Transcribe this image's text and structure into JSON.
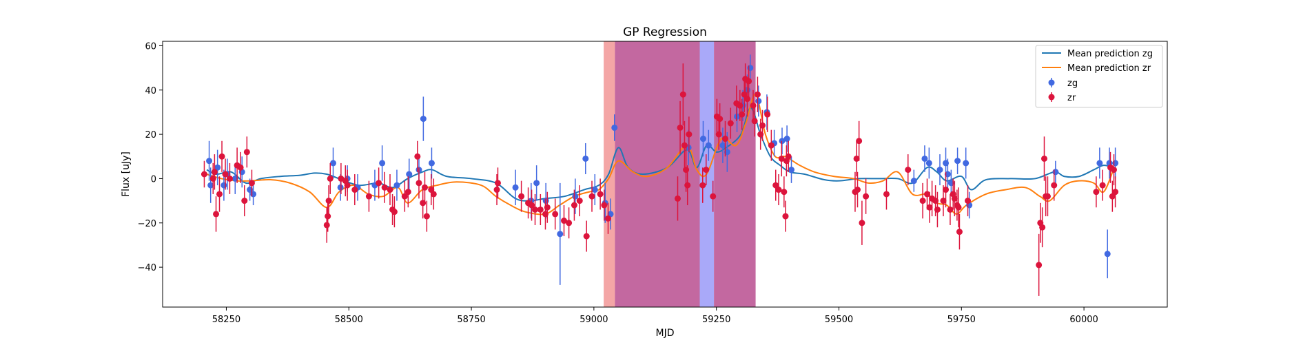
{
  "chart_data": {
    "type": "scatter",
    "title": "GP Regression",
    "xlabel": "MJD",
    "ylabel": "Flux [uJy]",
    "xlim": [
      58120,
      60170
    ],
    "ylim": [
      -58,
      62
    ],
    "xticks": [
      58250,
      58500,
      58750,
      59000,
      59250,
      59500,
      59750,
      60000
    ],
    "yticks": [
      -40,
      -20,
      0,
      20,
      40,
      60
    ],
    "grid": false,
    "legend_position": "top-right",
    "shaded_regions": [
      {
        "x0": 59020,
        "x1": 59043,
        "color": "#f08080",
        "opacity": 0.7
      },
      {
        "x0": 59043,
        "x1": 59216,
        "color": "#c0609b",
        "opacity": 0.95
      },
      {
        "x0": 59216,
        "x1": 59245,
        "color": "#a0a0f8",
        "opacity": 0.9
      },
      {
        "x0": 59245,
        "x1": 59330,
        "color": "#c0609b",
        "opacity": 0.95
      }
    ],
    "series": [
      {
        "name": "Mean prediction zg",
        "kind": "line",
        "color": "#1f77b4",
        "x": [
          58210,
          58230,
          58260,
          58290,
          58320,
          58360,
          58400,
          58430,
          58455,
          58480,
          58520,
          58560,
          58590,
          58620,
          58650,
          58670,
          58700,
          58750,
          58800,
          58840,
          58870,
          58900,
          58940,
          58980,
          59010,
          59030,
          59050,
          59070,
          59100,
          59150,
          59190,
          59210,
          59230,
          59250,
          59270,
          59300,
          59320,
          59340,
          59360,
          59380,
          59400,
          59430,
          59470,
          59500,
          59540,
          59580,
          59620,
          59650,
          59680,
          59700,
          59720,
          59750,
          59770,
          59800,
          59850,
          59900,
          59940,
          59960,
          59990,
          60020,
          60040,
          60060
        ],
        "y": [
          4,
          2,
          3,
          -2,
          0,
          1,
          1.5,
          2.5,
          2,
          0,
          -3,
          -2,
          -4,
          0,
          3,
          4,
          1,
          0,
          -2,
          -9,
          -10,
          -9,
          -8,
          -5,
          -3,
          2,
          14,
          5,
          2,
          5,
          13,
          5,
          15,
          12,
          14,
          20,
          32,
          20,
          10,
          6,
          3,
          2,
          -0.5,
          -1,
          0,
          0,
          0,
          -2,
          5,
          3,
          -1,
          1,
          -5,
          -0.5,
          0,
          0,
          3,
          1,
          1,
          4,
          6,
          5
        ]
      },
      {
        "name": "Mean prediction zr",
        "kind": "line",
        "color": "#ff7f0e",
        "x": [
          58210,
          58240,
          58270,
          58300,
          58340,
          58380,
          58420,
          58455,
          58480,
          58510,
          58540,
          58570,
          58600,
          58620,
          58650,
          58680,
          58720,
          58770,
          58800,
          58830,
          58860,
          58900,
          58930,
          58960,
          58990,
          59010,
          59030,
          59050,
          59080,
          59110,
          59150,
          59190,
          59210,
          59230,
          59260,
          59290,
          59310,
          59330,
          59350,
          59370,
          59390,
          59420,
          59450,
          59490,
          59530,
          59560,
          59590,
          59620,
          59650,
          59680,
          59700,
          59720,
          59740,
          59760,
          59800,
          59840,
          59880,
          59910,
          59930,
          59960,
          59990,
          60020,
          60040,
          60060
        ],
        "y": [
          2,
          0,
          -1,
          -1,
          -0.5,
          -2,
          -6,
          -13,
          -6,
          -3,
          -7,
          -8,
          -4,
          -11,
          -5,
          -3,
          -1.5,
          -3,
          -8,
          -12,
          -15,
          -16,
          -12,
          -8,
          -6,
          -5,
          0,
          8,
          3,
          1,
          5,
          15,
          4,
          2,
          18,
          15,
          25,
          38,
          20,
          10,
          10,
          6,
          3,
          1,
          0,
          -2,
          -1,
          3,
          -7,
          -7,
          -11,
          -12,
          -16,
          -12,
          -7,
          -5,
          -4,
          -8,
          -10,
          -3,
          -1,
          -2,
          -6,
          4
        ]
      },
      {
        "name": "zg",
        "kind": "errorbar",
        "color": "#4169e1",
        "x": [
          58215,
          58218,
          58232,
          58245,
          58252,
          58268,
          58282,
          58298,
          58305,
          58468,
          58483,
          58497,
          58518,
          58553,
          58568,
          58598,
          58623,
          58643,
          58652,
          58669,
          58840,
          58872,
          58883,
          58902,
          58931,
          58962,
          58983,
          59002,
          59023,
          59034,
          59042,
          59193,
          59223,
          59234,
          59263,
          59272,
          59292,
          59304,
          59313,
          59319,
          59336,
          59353,
          59368,
          59384,
          59394,
          59403,
          59653,
          59675,
          59684,
          59706,
          59718,
          59722,
          59729,
          59742,
          59759,
          59766,
          59942,
          60032,
          60048,
          60052,
          60064
        ],
        "y": [
          8,
          -3,
          5,
          -3,
          2,
          0,
          3,
          -5,
          -7,
          7,
          -4,
          0,
          -4,
          -3,
          7,
          -3,
          2,
          4,
          27,
          7,
          -4,
          -10,
          -2,
          -10,
          -25,
          -8,
          9,
          -5,
          -11,
          -16,
          23,
          14,
          18,
          15,
          15,
          12,
          28,
          33,
          40,
          50,
          35,
          30,
          16,
          17,
          18,
          4,
          -1,
          9,
          7,
          4,
          7,
          2,
          -2,
          8,
          7,
          -12,
          3,
          7,
          -34,
          7,
          7
        ],
        "err": [
          9,
          8,
          8,
          7,
          7,
          7,
          7,
          5,
          5,
          7,
          6,
          6,
          6,
          7,
          8,
          7,
          7,
          7,
          10,
          7,
          8,
          8,
          8,
          8,
          23,
          8,
          7,
          7,
          9,
          7,
          6,
          8,
          8,
          7,
          8,
          9,
          7,
          7,
          7,
          6,
          7,
          8,
          6,
          6,
          6,
          6,
          5,
          6,
          7,
          7,
          7,
          7,
          6,
          6,
          7,
          6,
          5,
          7,
          11,
          7,
          7
        ]
      },
      {
        "name": "zr",
        "kind": "errorbar",
        "color": "#dc143c",
        "x": [
          58205,
          58223,
          58226,
          58229,
          58236,
          58241,
          58248,
          58257,
          58272,
          58279,
          58287,
          58292,
          58302,
          58455,
          58457,
          58459,
          58462,
          58484,
          58493,
          58497,
          58512,
          58541,
          58561,
          58573,
          58584,
          58589,
          58593,
          58614,
          58621,
          58640,
          58643,
          58651,
          58655,
          58659,
          58668,
          58673,
          58802,
          58804,
          58852,
          58866,
          58873,
          58880,
          58891,
          58901,
          58905,
          58921,
          58939,
          58949,
          58960,
          58971,
          58985,
          58996,
          59013,
          59021,
          59029,
          59171,
          59176,
          59182,
          59185,
          59188,
          59191,
          59194,
          59222,
          59229,
          59243,
          59251,
          59255,
          59257,
          59268,
          59279,
          59291,
          59298,
          59302,
          59307,
          59309,
          59313,
          59316,
          59325,
          59328,
          59334,
          59340,
          59344,
          59354,
          59362,
          59371,
          59377,
          59383,
          59388,
          59391,
          59393,
          59397,
          59533,
          59536,
          59538,
          59541,
          59547,
          59555,
          59597,
          59641,
          59671,
          59680,
          59685,
          59690,
          59697,
          59701,
          59713,
          59718,
          59727,
          59733,
          59736,
          59741,
          59744,
          59746,
          59763,
          59908,
          59911,
          59915,
          59919,
          59922,
          59926,
          59939,
          60025,
          60038,
          60054,
          60058,
          60061,
          60064
        ],
        "y": [
          2,
          0,
          3,
          -16,
          -7,
          10,
          2,
          0,
          6,
          5,
          -10,
          12,
          -2,
          -21,
          -17,
          -10,
          0,
          0,
          -1,
          -3,
          -5,
          -8,
          -2,
          -4,
          -5,
          -14,
          -15,
          -8,
          -6,
          10,
          -2,
          -11,
          -4,
          -17,
          -5,
          -7,
          -5,
          -2,
          -8,
          -11,
          -12,
          -14,
          -14,
          -16,
          -13,
          -16,
          -19,
          -20,
          -12,
          -10,
          -26,
          -8,
          -7,
          -12,
          -18,
          -9,
          23,
          38,
          15,
          4,
          -3,
          20,
          -3,
          4,
          -8,
          28,
          20,
          27,
          18,
          25,
          34,
          33,
          29,
          38,
          45,
          36,
          44,
          33,
          26,
          38,
          20,
          24,
          29,
          15,
          -3,
          -5,
          9,
          -6,
          -17,
          8,
          10,
          -6,
          9,
          -5,
          17,
          -20,
          -8,
          -7,
          4,
          -10,
          -7,
          -13,
          -9,
          -10,
          -14,
          -10,
          -5,
          -14,
          -7,
          -9,
          -12,
          -13,
          -24,
          -10,
          -39,
          -20,
          -22,
          9,
          -8,
          -8,
          -3,
          -6,
          -3,
          5,
          -8,
          4,
          -6
        ],
        "err": [
          6,
          7,
          8,
          8,
          8,
          7,
          7,
          7,
          8,
          7,
          7,
          7,
          6,
          8,
          7,
          7,
          7,
          7,
          7,
          7,
          7,
          7,
          7,
          7,
          7,
          7,
          7,
          7,
          7,
          7,
          7,
          7,
          7,
          7,
          7,
          7,
          7,
          7,
          7,
          7,
          7,
          7,
          7,
          7,
          7,
          7,
          7,
          7,
          7,
          7,
          7,
          7,
          7,
          7,
          7,
          10,
          12,
          14,
          11,
          10,
          9,
          8,
          8,
          7,
          7,
          8,
          7,
          7,
          8,
          7,
          8,
          7,
          7,
          8,
          7,
          8,
          7,
          7,
          7,
          8,
          7,
          7,
          8,
          7,
          7,
          7,
          8,
          7,
          7,
          7,
          7,
          9,
          8,
          8,
          9,
          10,
          8,
          7,
          7,
          8,
          7,
          7,
          8,
          7,
          8,
          7,
          8,
          7,
          7,
          8,
          7,
          9,
          8,
          7,
          14,
          9,
          9,
          10,
          9,
          9,
          7,
          7,
          7,
          7,
          7,
          7,
          7
        ]
      }
    ]
  }
}
